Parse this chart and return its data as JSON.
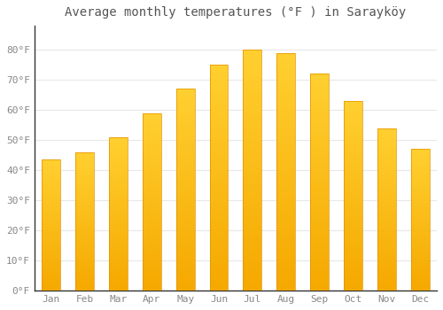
{
  "title": "Average monthly temperatures (°F ) in Sarayköy",
  "months": [
    "Jan",
    "Feb",
    "Mar",
    "Apr",
    "May",
    "Jun",
    "Jul",
    "Aug",
    "Sep",
    "Oct",
    "Nov",
    "Dec"
  ],
  "values": [
    43.5,
    46.0,
    51.0,
    59.0,
    67.0,
    75.0,
    80.0,
    79.0,
    72.0,
    63.0,
    54.0,
    47.0
  ],
  "bar_color_top": "#FFC926",
  "bar_color_bottom": "#F5A800",
  "bar_edge_color": "#E09000",
  "background_color": "#FFFFFF",
  "plot_bg_color": "#FFFFFF",
  "grid_color": "#E8E8E8",
  "ytick_labels": [
    "0°F",
    "10°F",
    "20°F",
    "30°F",
    "40°F",
    "50°F",
    "60°F",
    "70°F",
    "80°F"
  ],
  "ytick_values": [
    0,
    10,
    20,
    30,
    40,
    50,
    60,
    70,
    80
  ],
  "ylim": [
    0,
    88
  ],
  "title_fontsize": 10,
  "tick_fontsize": 8,
  "tick_color": "#888888",
  "title_color": "#555555",
  "spine_color": "#333333",
  "bar_width": 0.55
}
